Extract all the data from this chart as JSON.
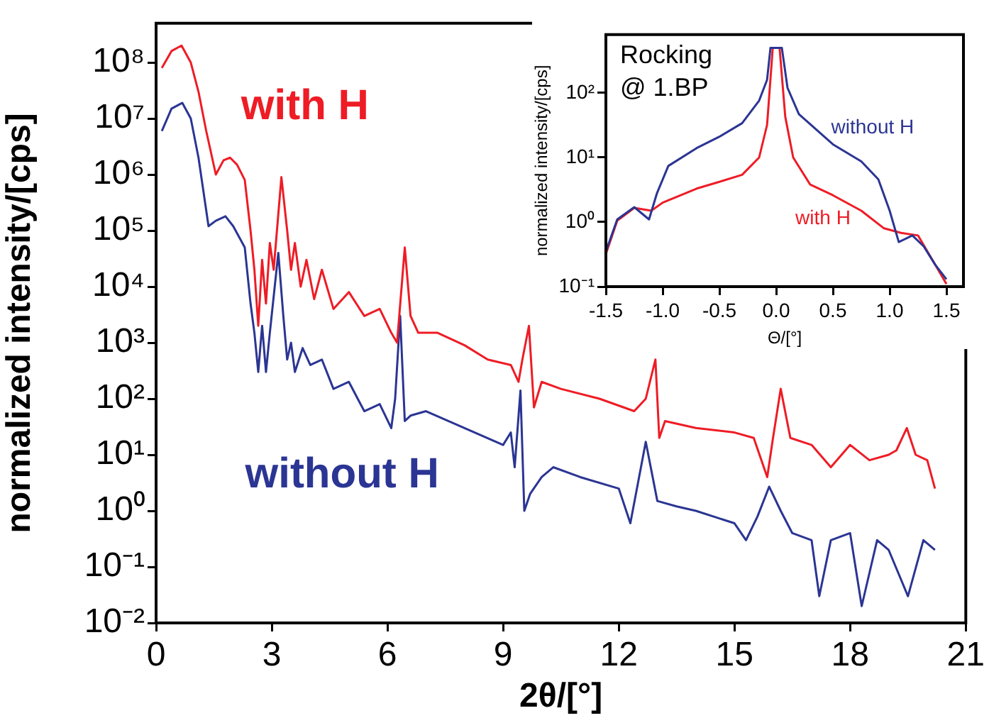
{
  "chart_data": [
    {
      "type": "line",
      "xlabel": "2θ/[°]",
      "ylabel": "normalized intensity/[cps]",
      "log": "y",
      "xlim": [
        0,
        21
      ],
      "xticks": [
        0,
        3,
        6,
        9,
        12,
        15,
        18,
        21
      ],
      "ylim": [
        0.01,
        500000000
      ],
      "yticks": [
        {
          "value": 0.01,
          "label": "10⁻²"
        },
        {
          "value": 0.1,
          "label": "10⁻¹"
        },
        {
          "value": 1,
          "label": "10⁰"
        },
        {
          "value": 10,
          "label": "10¹"
        },
        {
          "value": 100,
          "label": "10²"
        },
        {
          "value": 1000,
          "label": "10³"
        },
        {
          "value": 10000,
          "label": "10⁴"
        },
        {
          "value": 100000,
          "label": "10⁵"
        },
        {
          "value": 1000000,
          "label": "10⁶"
        },
        {
          "value": 10000000,
          "label": "10⁷"
        },
        {
          "value": 100000000,
          "label": "10⁸"
        }
      ],
      "series": [
        {
          "name": "with H",
          "color": "#ee1c25",
          "x": [
            0.15,
            0.4,
            0.66,
            0.9,
            1.1,
            1.3,
            1.55,
            1.75,
            1.92,
            2.1,
            2.3,
            2.45,
            2.55,
            2.65,
            2.75,
            2.85,
            2.95,
            3.05,
            3.25,
            3.4,
            3.5,
            3.6,
            3.75,
            3.9,
            4.1,
            4.3,
            4.6,
            5.0,
            5.4,
            5.8,
            6.1,
            6.25,
            6.45,
            6.6,
            6.8,
            7.3,
            8.0,
            8.6,
            9.2,
            9.4,
            9.5,
            9.67,
            9.8,
            10.0,
            10.5,
            11.5,
            12.4,
            12.7,
            12.95,
            13.05,
            13.2,
            14,
            15,
            15.5,
            15.85,
            16.0,
            16.2,
            16.45,
            17,
            17.5,
            18,
            18.5,
            19,
            19.2,
            19.47,
            19.7,
            20,
            20.2
          ],
          "values": [
            80000000,
            160000000,
            200000000,
            100000000,
            30000000,
            6000000,
            1000000,
            1800000,
            2000000,
            1500000,
            800000,
            100000,
            20000,
            2000,
            30000,
            5000,
            60000,
            20000,
            900000,
            100000,
            20000,
            60000,
            10000,
            30000,
            6000,
            20000,
            4000,
            8000,
            3000,
            4000,
            1500,
            1000,
            50000,
            3000,
            1500,
            1500,
            900,
            500,
            400,
            200,
            500,
            2000,
            70,
            200,
            150,
            100,
            60,
            100,
            500,
            20,
            40,
            30,
            25,
            20,
            4,
            20,
            150,
            20,
            15,
            6,
            15,
            8,
            10,
            12,
            30,
            10,
            8,
            2.5
          ]
        },
        {
          "name": "without H",
          "color": "#2b3593",
          "x": [
            0.15,
            0.4,
            0.68,
            0.9,
            1.1,
            1.36,
            1.55,
            1.8,
            2.0,
            2.3,
            2.45,
            2.55,
            2.65,
            2.75,
            2.85,
            2.95,
            3.17,
            3.3,
            3.4,
            3.5,
            3.6,
            3.8,
            4.0,
            4.3,
            4.6,
            5.0,
            5.4,
            5.8,
            6.1,
            6.2,
            6.33,
            6.45,
            6.6,
            7.0,
            8.0,
            9.0,
            9.2,
            9.3,
            9.45,
            9.55,
            9.7,
            10.0,
            10.3,
            11,
            12,
            12.3,
            12.7,
            13,
            13.5,
            14,
            15,
            15.3,
            15.6,
            15.9,
            16.2,
            16.5,
            17,
            17.2,
            17.5,
            18,
            18.3,
            18.7,
            19,
            19.5,
            19.9,
            20.2
          ],
          "values": [
            6000000,
            15000000,
            19000000,
            10000000,
            2000000,
            120000,
            150000,
            180000,
            120000,
            50000,
            5000,
            1500,
            300,
            2000,
            300,
            1500,
            40000,
            3000,
            500,
            1000,
            300,
            800,
            400,
            500,
            150,
            200,
            60,
            80,
            30,
            100,
            3000,
            40,
            50,
            60,
            30,
            15,
            25,
            6,
            140,
            1,
            2,
            4,
            6,
            4,
            2.5,
            0.6,
            17,
            1.5,
            1.2,
            1,
            0.6,
            0.3,
            0.8,
            2.7,
            1,
            0.4,
            0.3,
            0.03,
            0.3,
            0.4,
            0.02,
            0.3,
            0.2,
            0.03,
            0.3,
            0.2
          ]
        }
      ]
    },
    {
      "type": "line",
      "xlabel": "Θ/[°]",
      "ylabel": "normalized intensity/[cps]",
      "log": "y",
      "xlim": [
        -1.5,
        1.65
      ],
      "xticks": [
        {
          "value": -1.5,
          "label": "-1.5"
        },
        {
          "value": -1,
          "label": "-1.0"
        },
        {
          "value": -0.5,
          "label": "-0.5"
        },
        {
          "value": 0,
          "label": "0.0"
        },
        {
          "value": 0.5,
          "label": "0.5"
        },
        {
          "value": 1,
          "label": "1.0"
        },
        {
          "value": 1.5,
          "label": "1.5"
        }
      ],
      "ylim": [
        0.1,
        800
      ],
      "yticks": [
        {
          "value": 0.1,
          "label": "10⁻¹"
        },
        {
          "value": 1,
          "label": "10⁰"
        },
        {
          "value": 10,
          "label": "10¹"
        },
        {
          "value": 100,
          "label": "10²"
        }
      ],
      "annotations": [
        "Rocking",
        "@ 1.BP"
      ],
      "series": [
        {
          "name": "without H",
          "color": "#2b3593",
          "x": [
            -1.5,
            -1.4,
            -1.25,
            -1.12,
            -1.05,
            -0.95,
            -0.7,
            -0.5,
            -0.3,
            -0.15,
            -0.08,
            -0.05,
            0.05,
            0.1,
            0.2,
            0.5,
            0.75,
            0.9,
            1.0,
            1.08,
            1.2,
            1.3,
            1.4,
            1.5
          ],
          "values": [
            0.35,
            1.1,
            1.7,
            1.1,
            2.8,
            7.4,
            14,
            21,
            34,
            76,
            160,
            500,
            500,
            120,
            47,
            16,
            8.7,
            4.6,
            1.5,
            0.49,
            0.62,
            0.42,
            0.22,
            0.13
          ]
        },
        {
          "name": "with H",
          "color": "#ee1c25",
          "x": [
            -1.5,
            -1.4,
            -1.25,
            -1.1,
            -1.0,
            -0.7,
            -0.5,
            -0.3,
            -0.15,
            -0.08,
            -0.03,
            0.03,
            0.08,
            0.15,
            0.3,
            0.5,
            0.75,
            0.95,
            1.1,
            1.25,
            1.4,
            1.5
          ],
          "values": [
            0.32,
            1.05,
            1.66,
            1.5,
            2,
            3.3,
            4.2,
            5.4,
            10,
            32,
            500,
            500,
            43,
            10,
            3.8,
            2.6,
            1.5,
            0.8,
            0.68,
            0.62,
            0.22,
            0.11
          ]
        }
      ]
    }
  ]
}
